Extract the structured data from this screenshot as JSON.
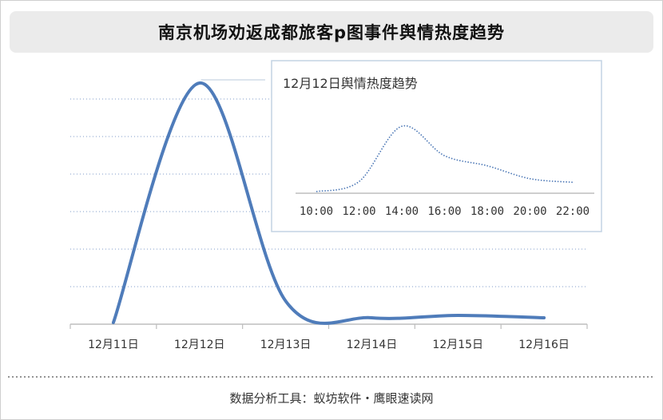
{
  "title": "南京机场劝返成都旅客p图事件舆情热度趋势",
  "footer": "数据分析工具：蚁坊软件・鹰眼速读网",
  "colors": {
    "main_line": "#4f7cba",
    "inset_line": "#4a76b5",
    "grid": "#7f9bc8",
    "axis": "#bdbdbd",
    "inset_border": "#c3d3e4"
  },
  "chart_data": [
    {
      "type": "line",
      "title": "",
      "xlabel": "",
      "ylabel": "",
      "categories": [
        "12月11日",
        "12月12日",
        "12月13日",
        "12月14日",
        "12月15日",
        "12月16日"
      ],
      "values": [
        0,
        100,
        9,
        2,
        3,
        2
      ],
      "ylim": [
        0,
        100
      ],
      "grid": true,
      "smooth": true
    },
    {
      "type": "line",
      "title": "12月12日舆情热度趋势",
      "xlabel": "",
      "ylabel": "",
      "x": [
        "10:00",
        "12:00",
        "14:00",
        "16:00",
        "18:00",
        "20:00",
        "22:00"
      ],
      "values": [
        0,
        14,
        91,
        50,
        36,
        18,
        13
      ],
      "ylim": [
        0,
        100
      ],
      "line_style": "dotted",
      "grid": false
    }
  ]
}
